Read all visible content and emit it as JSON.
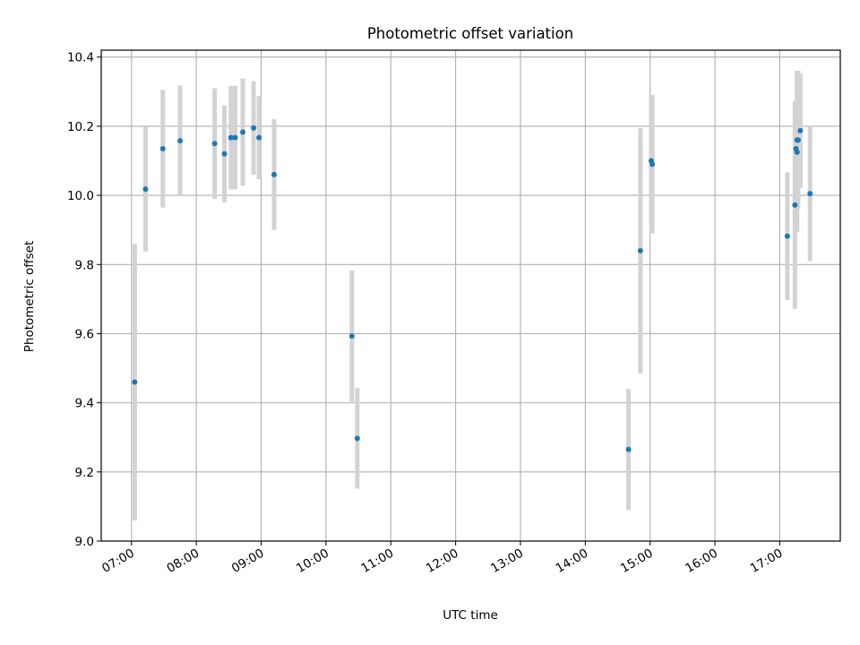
{
  "chart_data": {
    "type": "scatter",
    "title": "Photometric offset variation",
    "xlabel": "UTC time",
    "ylabel": "Photometric offset",
    "xlim": [
      "06:32",
      "17:56"
    ],
    "ylim": [
      9.0,
      10.42
    ],
    "grid": true,
    "legend": "none",
    "colors": {
      "points": "#1f77b4",
      "errorbars": "#d3d3d3",
      "grid": "#b0b0b0",
      "axes": "#000000"
    },
    "x_ticks": [
      "07:00",
      "08:00",
      "09:00",
      "10:00",
      "11:00",
      "12:00",
      "13:00",
      "14:00",
      "15:00",
      "16:00",
      "17:00"
    ],
    "y_ticks": [
      "9.0",
      "9.2",
      "9.4",
      "9.6",
      "9.8",
      "10.0",
      "10.2",
      "10.4"
    ],
    "points": [
      {
        "x": "07:03",
        "y": 9.46,
        "err": 0.4
      },
      {
        "x": "07:13",
        "y": 10.018,
        "err": 0.18
      },
      {
        "x": "07:29",
        "y": 10.135,
        "err": 0.17
      },
      {
        "x": "07:45",
        "y": 10.158,
        "err": 0.16
      },
      {
        "x": "08:17",
        "y": 10.15,
        "err": 0.16
      },
      {
        "x": "08:26",
        "y": 10.12,
        "err": 0.14
      },
      {
        "x": "08:32",
        "y": 10.167,
        "err": 0.15
      },
      {
        "x": "08:36",
        "y": 10.167,
        "err": 0.15
      },
      {
        "x": "08:43",
        "y": 10.183,
        "err": 0.155
      },
      {
        "x": "08:53",
        "y": 10.195,
        "err": 0.135
      },
      {
        "x": "08:58",
        "y": 10.167,
        "err": 0.12
      },
      {
        "x": "09:12",
        "y": 10.06,
        "err": 0.16
      },
      {
        "x": "10:24",
        "y": 9.593,
        "err": 0.19
      },
      {
        "x": "10:29",
        "y": 9.297,
        "err": 0.145
      },
      {
        "x": "14:40",
        "y": 9.265,
        "err": 0.175
      },
      {
        "x": "14:51",
        "y": 9.84,
        "err": 0.355
      },
      {
        "x": "15:01",
        "y": 10.1,
        "err": 0.19
      },
      {
        "x": "15:02",
        "y": 10.09,
        "err": 0.2
      },
      {
        "x": "17:07",
        "y": 9.882,
        "err": 0.185
      },
      {
        "x": "17:14",
        "y": 9.972,
        "err": 0.3
      },
      {
        "x": "17:15",
        "y": 10.135,
        "err": 0.135
      },
      {
        "x": "17:16",
        "y": 10.125,
        "err": 0.23
      },
      {
        "x": "17:16",
        "y": 10.16,
        "err": 0.2
      },
      {
        "x": "17:17",
        "y": 10.16,
        "err": 0.2
      },
      {
        "x": "17:19",
        "y": 10.187,
        "err": 0.165
      },
      {
        "x": "17:28",
        "y": 10.005,
        "err": 0.195
      }
    ]
  }
}
